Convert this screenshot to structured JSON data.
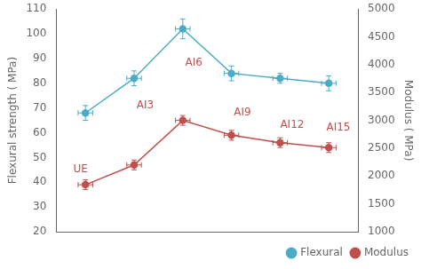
{
  "chart_data": {
    "type": "line",
    "x": [
      0,
      1,
      2,
      3,
      4,
      5
    ],
    "xlim": [
      -0.6,
      5.6
    ],
    "ylim": [
      20,
      110
    ],
    "yticks": [
      20,
      30,
      40,
      50,
      60,
      70,
      80,
      90,
      100,
      110
    ],
    "y2lim": [
      1000,
      5000
    ],
    "y2ticks": [
      1000,
      1500,
      2000,
      2500,
      3000,
      3500,
      4000,
      4500,
      5000
    ],
    "y_label": "Flexural strength ( MPa)",
    "y2_label": "Modulus ( MPa)",
    "series": [
      {
        "name": "Flexural",
        "color": "#4bacc6",
        "marker": "circle",
        "values": [
          68,
          82,
          102,
          84,
          82,
          80
        ],
        "yerr": [
          3,
          3,
          4,
          3,
          2,
          3
        ],
        "xerr": [
          0.15,
          0.15,
          0.15,
          0.15,
          0.15,
          0.15
        ]
      },
      {
        "name": "Modulus",
        "color": "#c0504d",
        "marker": "circle",
        "axis": "y2",
        "values": [
          1844,
          2200,
          3000,
          2733,
          2600,
          2511
        ],
        "yerr": [
          88,
          88,
          88,
          88,
          88,
          88
        ],
        "xerr": [
          0.15,
          0.15,
          0.15,
          0.15,
          0.15,
          0.15
        ]
      }
    ],
    "annotations": [
      {
        "text": "UE",
        "x": -0.25,
        "y": 44,
        "color": "#c0504d"
      },
      {
        "text": "AI3",
        "x": 1.05,
        "y": 70,
        "color": "#c0504d"
      },
      {
        "text": "AI6",
        "x": 2.05,
        "y": 87,
        "color": "#c0504d"
      },
      {
        "text": "AI9",
        "x": 3.05,
        "y": 67,
        "color": "#c0504d"
      },
      {
        "text": "AI12",
        "x": 4.0,
        "y": 62,
        "color": "#c0504d"
      },
      {
        "text": "AI15",
        "x": 4.95,
        "y": 61,
        "color": "#c0504d"
      }
    ],
    "legend": "lower right",
    "grid": false,
    "tick_labels": "y"
  }
}
